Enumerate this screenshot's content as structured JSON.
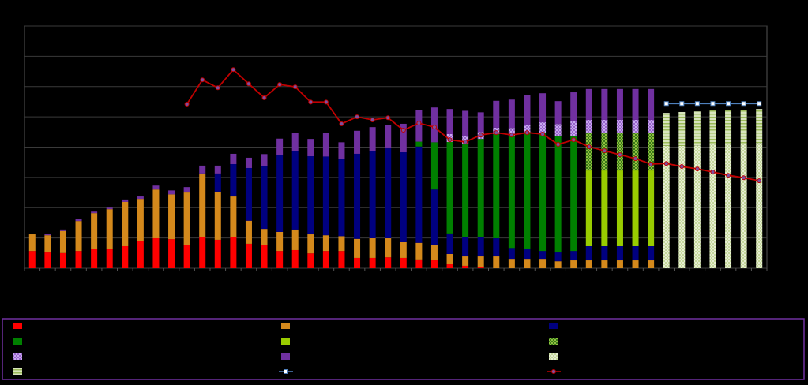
{
  "chart_data": {
    "type": "bar",
    "stacked": true,
    "categories": [
      null,
      null,
      null,
      null,
      null,
      null,
      null,
      null,
      null,
      null,
      null,
      null,
      null,
      null,
      null,
      null,
      null,
      null,
      null,
      null,
      null,
      null,
      null,
      null,
      null,
      null,
      null,
      null,
      null,
      null,
      null,
      null,
      null,
      null,
      null,
      null,
      null,
      null,
      null,
      null,
      null,
      null,
      null,
      null,
      null,
      null,
      null,
      null
    ],
    "ylim": [
      0,
      8
    ],
    "yticks": [
      0,
      1,
      2,
      3,
      4,
      5,
      6,
      7,
      8
    ],
    "grid": true,
    "legend": "bottom",
    "series": [
      {
        "color": "#ff0000",
        "values": [
          0.57,
          0.52,
          0.5,
          0.57,
          0.65,
          0.65,
          0.73,
          0.91,
          0.99,
          0.96,
          0.76,
          1.02,
          0.94,
          1.02,
          0.81,
          0.78,
          0.57,
          0.6,
          0.49,
          0.57,
          0.57,
          0.34,
          0.34,
          0.36,
          0.34,
          0.29,
          0.26,
          0.13,
          0.08,
          0.05,
          null,
          null,
          null,
          null,
          null,
          null,
          null,
          null,
          null,
          null,
          null,
          null,
          null,
          null,
          null,
          null,
          null,
          null
        ]
      },
      {
        "color": "#d4891c",
        "values": [
          0.55,
          0.57,
          0.73,
          0.99,
          1.17,
          1.3,
          1.46,
          1.38,
          1.61,
          1.48,
          1.74,
          2.11,
          1.59,
          1.35,
          0.76,
          0.52,
          0.63,
          0.68,
          0.63,
          0.52,
          0.49,
          0.63,
          0.65,
          0.63,
          0.52,
          0.55,
          0.52,
          0.34,
          0.31,
          0.34,
          0.39,
          0.31,
          0.31,
          0.31,
          0.23,
          0.26,
          0.26,
          0.26,
          0.26,
          0.26,
          0.26,
          null,
          null,
          null,
          null,
          null,
          null,
          null
        ]
      },
      {
        "color": "#000080",
        "values": [
          null,
          null,
          null,
          null,
          null,
          null,
          null,
          null,
          null,
          null,
          null,
          null,
          0.6,
          1.07,
          1.74,
          2.08,
          2.53,
          2.58,
          2.58,
          2.6,
          2.55,
          2.81,
          2.89,
          2.97,
          2.97,
          3.18,
          1.82,
          0.68,
          0.65,
          0.65,
          0.6,
          0.36,
          0.34,
          0.26,
          0.29,
          0.31,
          0.47,
          0.47,
          0.47,
          0.47,
          0.47,
          null,
          null,
          null,
          null,
          null,
          null,
          null
        ]
      },
      {
        "color": "#008000",
        "values": [
          null,
          null,
          null,
          null,
          null,
          null,
          null,
          null,
          null,
          null,
          null,
          null,
          null,
          null,
          null,
          null,
          null,
          null,
          null,
          null,
          null,
          null,
          null,
          null,
          null,
          0.16,
          1.56,
          3.02,
          3.07,
          3.23,
          3.44,
          3.7,
          3.83,
          3.91,
          3.85,
          3.8,
          null,
          null,
          null,
          null,
          null,
          null,
          null,
          null,
          null,
          null,
          null,
          null
        ]
      },
      {
        "color": "#99cc00",
        "values": [
          null,
          null,
          null,
          null,
          null,
          null,
          null,
          null,
          null,
          null,
          null,
          null,
          null,
          null,
          null,
          null,
          null,
          null,
          null,
          null,
          null,
          null,
          null,
          null,
          null,
          null,
          null,
          null,
          null,
          null,
          null,
          null,
          null,
          null,
          null,
          null,
          2.5,
          2.5,
          2.5,
          2.5,
          2.5,
          null,
          null,
          null,
          null,
          null,
          null,
          null
        ]
      },
      {
        "color": "#3a7a1a",
        "pattern": "dots",
        "pattern_color": "#8fbf3f",
        "values": [
          null,
          null,
          null,
          null,
          null,
          null,
          null,
          null,
          null,
          null,
          null,
          null,
          null,
          null,
          null,
          null,
          null,
          null,
          null,
          null,
          null,
          null,
          null,
          null,
          null,
          null,
          null,
          null,
          null,
          null,
          null,
          null,
          null,
          null,
          null,
          null,
          1.25,
          1.25,
          1.25,
          1.25,
          1.25,
          null,
          null,
          null,
          null,
          null,
          null,
          null
        ]
      },
      {
        "color": "#9966cc",
        "pattern": "dots",
        "pattern_color": "#c8a8f0",
        "values": [
          null,
          null,
          null,
          null,
          null,
          null,
          null,
          null,
          null,
          null,
          null,
          null,
          null,
          null,
          null,
          null,
          null,
          null,
          null,
          null,
          null,
          null,
          null,
          null,
          null,
          null,
          null,
          0.26,
          0.26,
          0.23,
          0.21,
          0.26,
          0.26,
          0.34,
          0.39,
          0.5,
          0.42,
          0.42,
          0.42,
          0.42,
          0.42,
          null,
          null,
          null,
          null,
          null,
          null,
          null
        ]
      },
      {
        "color": "#7030a0",
        "values": [
          null,
          0.05,
          0.05,
          0.08,
          0.05,
          0.05,
          0.08,
          0.08,
          0.13,
          0.13,
          0.18,
          0.26,
          0.26,
          0.34,
          0.34,
          0.39,
          0.55,
          0.6,
          0.57,
          0.78,
          0.55,
          0.76,
          0.78,
          0.78,
          0.94,
          1.04,
          1.15,
          0.83,
          0.83,
          0.65,
          0.89,
          0.94,
          0.99,
          0.96,
          0.76,
          0.94,
          1.02,
          1.02,
          1.02,
          1.02,
          1.02,
          null,
          null,
          null,
          null,
          null,
          null,
          null
        ]
      },
      {
        "color": "#c4d79b",
        "pattern": "dots",
        "pattern_color": "#e6eed2",
        "values": [
          null,
          null,
          null,
          null,
          null,
          null,
          null,
          null,
          null,
          null,
          null,
          null,
          null,
          null,
          null,
          null,
          null,
          null,
          null,
          null,
          null,
          null,
          null,
          null,
          null,
          null,
          null,
          null,
          null,
          null,
          null,
          null,
          null,
          null,
          null,
          null,
          null,
          null,
          null,
          null,
          null,
          4.04,
          4.04,
          4.06,
          4.09,
          4.09,
          4.11,
          4.14
        ]
      },
      {
        "color": "#d7e4bc",
        "pattern": "stripes",
        "pattern_color": "#9bbb59",
        "values": [
          null,
          null,
          null,
          null,
          null,
          null,
          null,
          null,
          null,
          null,
          null,
          null,
          null,
          null,
          null,
          null,
          null,
          null,
          null,
          null,
          null,
          null,
          null,
          null,
          null,
          null,
          null,
          null,
          null,
          null,
          null,
          null,
          null,
          null,
          null,
          null,
          null,
          null,
          null,
          null,
          null,
          1.09,
          1.12,
          1.12,
          1.12,
          1.12,
          1.12,
          1.12
        ]
      },
      {
        "type": "line",
        "color": "#4f81bd",
        "marker": "square",
        "marker_color": "#ffffff",
        "values": [
          null,
          null,
          null,
          null,
          null,
          null,
          null,
          null,
          null,
          null,
          null,
          null,
          null,
          null,
          null,
          null,
          null,
          null,
          null,
          null,
          null,
          null,
          null,
          null,
          null,
          null,
          null,
          null,
          null,
          null,
          null,
          null,
          null,
          null,
          null,
          null,
          null,
          null,
          null,
          null,
          null,
          5.44,
          5.44,
          5.44,
          5.44,
          5.44,
          5.44,
          5.44
        ]
      },
      {
        "type": "line",
        "color": "#c00000",
        "marker": "circle",
        "marker_color": "#7f4f9f",
        "values": [
          null,
          null,
          null,
          null,
          null,
          null,
          null,
          null,
          null,
          null,
          5.42,
          6.22,
          5.96,
          6.56,
          6.09,
          5.63,
          6.07,
          5.99,
          5.49,
          5.49,
          4.77,
          5.0,
          4.9,
          4.97,
          4.56,
          4.79,
          4.66,
          4.24,
          4.17,
          4.4,
          4.48,
          4.4,
          4.48,
          4.43,
          4.09,
          4.24,
          4.01,
          3.88,
          3.75,
          3.62,
          3.44,
          3.46,
          3.36,
          3.28,
          3.18,
          3.07,
          2.99,
          2.89
        ]
      }
    ]
  }
}
